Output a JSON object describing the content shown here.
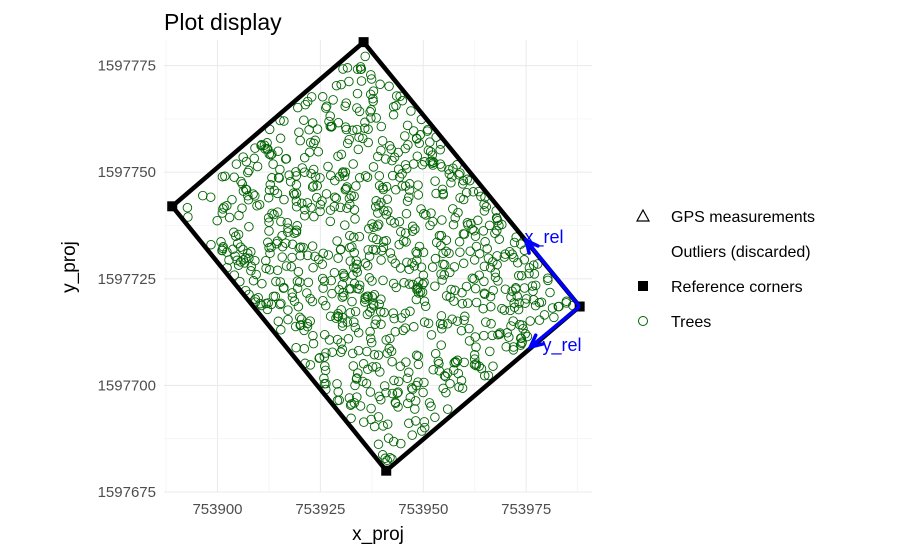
{
  "chart_data": {
    "type": "scatter",
    "title": "Plot display",
    "xlabel": "x_proj",
    "ylabel": "y_proj",
    "xlim": [
      753887,
      753991
    ],
    "ylim": [
      1597675,
      1597781
    ],
    "x_ticks": [
      753900,
      753925,
      753950,
      753975
    ],
    "y_ticks": [
      1597675,
      1597700,
      1597725,
      1597750,
      1597775
    ],
    "x_tick_labels": [
      "753900",
      "753925",
      "753950",
      "753975"
    ],
    "y_tick_labels": [
      "1597675",
      "1597700",
      "1597725",
      "1597750",
      "1597775"
    ],
    "grid": true,
    "legend_placement": "right",
    "legend": [
      {
        "label": "GPS measurements",
        "marker": "triangle-open"
      },
      {
        "label": "Outliers (discarded)",
        "marker": "none"
      },
      {
        "label": "Reference corners",
        "marker": "square-filled"
      },
      {
        "label": "Trees",
        "marker": "circle-open"
      }
    ],
    "reference_corners": [
      {
        "x": 753935.5,
        "y": 1597780.5
      },
      {
        "x": 753988.0,
        "y": 1597718.5
      },
      {
        "x": 753941.0,
        "y": 1597680.0
      },
      {
        "x": 753889.0,
        "y": 1597742.0
      }
    ],
    "axis_arrows": {
      "origin": {
        "x": 753988.0,
        "y": 1597718.5
      },
      "x_rel": {
        "label": "x_rel",
        "end": {
          "x": 753975.0,
          "y": 1597734.0
        }
      },
      "y_rel": {
        "label": "y_rel",
        "end": {
          "x": 753976.0,
          "y": 1597709.0
        }
      }
    },
    "trees": {
      "count": 900,
      "color": "#006400",
      "region": "inside plot boundary",
      "seed": 12345
    }
  },
  "colors": {
    "trees": "#006400",
    "arrows": "#0000ff",
    "boundary": "#000000",
    "grid": "#ebebeb"
  }
}
